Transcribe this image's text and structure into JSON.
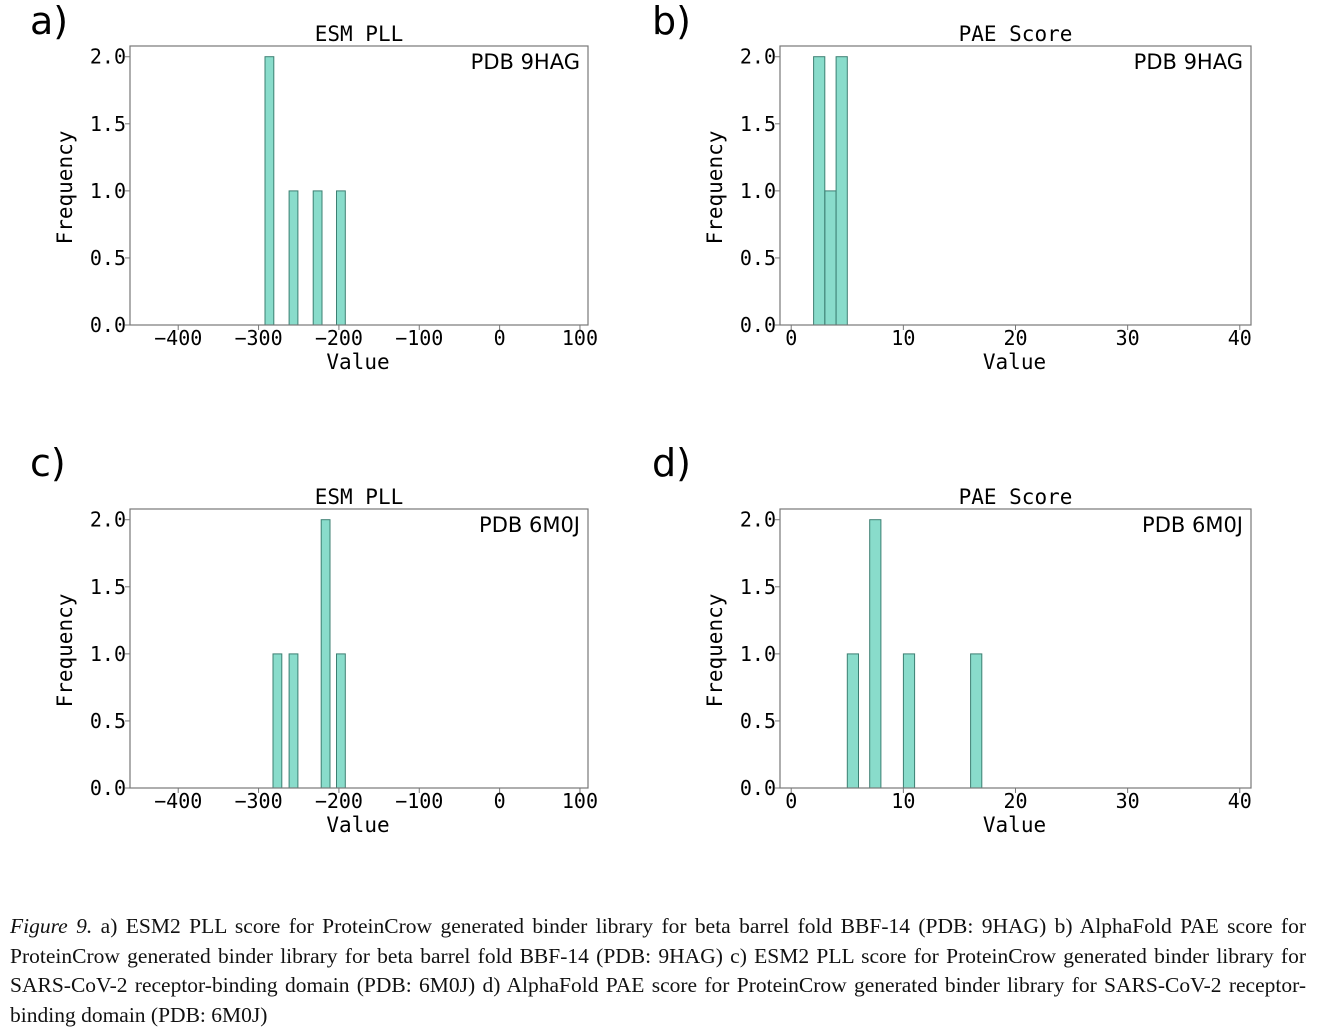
{
  "chart_data": [
    {
      "type": "bar",
      "panel_label": "a)",
      "title": "ESM PLL",
      "annotation": "PDB 9HAG",
      "xlabel": "Value",
      "ylabel": "Frequency",
      "xlim": [
        -460,
        110
      ],
      "ylim": [
        0,
        2.08
      ],
      "xticks": [
        -400,
        -300,
        -200,
        -100,
        0,
        100
      ],
      "xtick_labels": [
        "−400",
        "−300",
        "−200",
        "−100",
        "0",
        "100"
      ],
      "yticks": [
        0,
        0.5,
        1,
        1.5,
        2
      ],
      "ytick_labels": [
        "0.0",
        "0.5",
        "1.0",
        "1.5",
        "2.0"
      ],
      "grid": false,
      "bins": [
        {
          "x0": -292,
          "x1": -281,
          "count": 2
        },
        {
          "x0": -262,
          "x1": -251,
          "count": 1
        },
        {
          "x0": -232,
          "x1": -221,
          "count": 1
        },
        {
          "x0": -203,
          "x1": -192,
          "count": 1
        }
      ]
    },
    {
      "type": "bar",
      "panel_label": "b)",
      "title": "PAE Score",
      "annotation": "PDB 9HAG",
      "xlabel": "Value",
      "ylabel": "Frequency",
      "xlim": [
        -1,
        41
      ],
      "ylim": [
        0,
        2.08
      ],
      "xticks": [
        0,
        10,
        20,
        30,
        40
      ],
      "xtick_labels": [
        "0",
        "10",
        "20",
        "30",
        "40"
      ],
      "yticks": [
        0,
        0.5,
        1,
        1.5,
        2
      ],
      "ytick_labels": [
        "0.0",
        "0.5",
        "1.0",
        "1.5",
        "2.0"
      ],
      "grid": false,
      "bins": [
        {
          "x0": 2.0,
          "x1": 3.0,
          "count": 2
        },
        {
          "x0": 3.0,
          "x1": 4.0,
          "count": 1
        },
        {
          "x0": 4.0,
          "x1": 5.0,
          "count": 2
        }
      ]
    },
    {
      "type": "bar",
      "panel_label": "c)",
      "title": "ESM PLL",
      "annotation": "PDB 6M0J",
      "xlabel": "Value",
      "ylabel": "Frequency",
      "xlim": [
        -460,
        110
      ],
      "ylim": [
        0,
        2.08
      ],
      "xticks": [
        -400,
        -300,
        -200,
        -100,
        0,
        100
      ],
      "xtick_labels": [
        "−400",
        "−300",
        "−200",
        "−100",
        "0",
        "100"
      ],
      "yticks": [
        0,
        0.5,
        1,
        1.5,
        2
      ],
      "ytick_labels": [
        "0.0",
        "0.5",
        "1.0",
        "1.5",
        "2.0"
      ],
      "grid": false,
      "bins": [
        {
          "x0": -282,
          "x1": -271,
          "count": 1
        },
        {
          "x0": -262,
          "x1": -251,
          "count": 1
        },
        {
          "x0": -222,
          "x1": -211,
          "count": 2
        },
        {
          "x0": -203,
          "x1": -192,
          "count": 1
        }
      ]
    },
    {
      "type": "bar",
      "panel_label": "d)",
      "title": "PAE Score",
      "annotation": "PDB 6M0J",
      "xlabel": "Value",
      "ylabel": "Frequency",
      "xlim": [
        -1,
        41
      ],
      "ylim": [
        0,
        2.08
      ],
      "xticks": [
        0,
        10,
        20,
        30,
        40
      ],
      "xtick_labels": [
        "0",
        "10",
        "20",
        "30",
        "40"
      ],
      "yticks": [
        0,
        0.5,
        1,
        1.5,
        2
      ],
      "ytick_labels": [
        "0.0",
        "0.5",
        "1.0",
        "1.5",
        "2.0"
      ],
      "grid": false,
      "bins": [
        {
          "x0": 5.0,
          "x1": 6.0,
          "count": 1
        },
        {
          "x0": 7.0,
          "x1": 8.0,
          "count": 2
        },
        {
          "x0": 10.0,
          "x1": 11.0,
          "count": 1
        },
        {
          "x0": 16.0,
          "x1": 17.0,
          "count": 1
        }
      ]
    }
  ],
  "colors": {
    "bar_fill": "#89dccb",
    "bar_edge": "#3c7f72",
    "axis": "#777777",
    "text": "#000000"
  },
  "caption": {
    "figure_label": "Figure 9.",
    "text": " a) ESM2 PLL score for ProteinCrow generated binder library for beta barrel fold BBF-14 (PDB: 9HAG) b) AlphaFold PAE score for ProteinCrow generated binder library for beta barrel fold BBF-14 (PDB: 9HAG) c) ESM2 PLL score for ProteinCrow generated binder library for SARS-CoV-2 receptor-binding domain (PDB: 6M0J) d) AlphaFold PAE score for ProteinCrow generated binder library for SARS-CoV-2 receptor-binding domain (PDB: 6M0J)"
  }
}
